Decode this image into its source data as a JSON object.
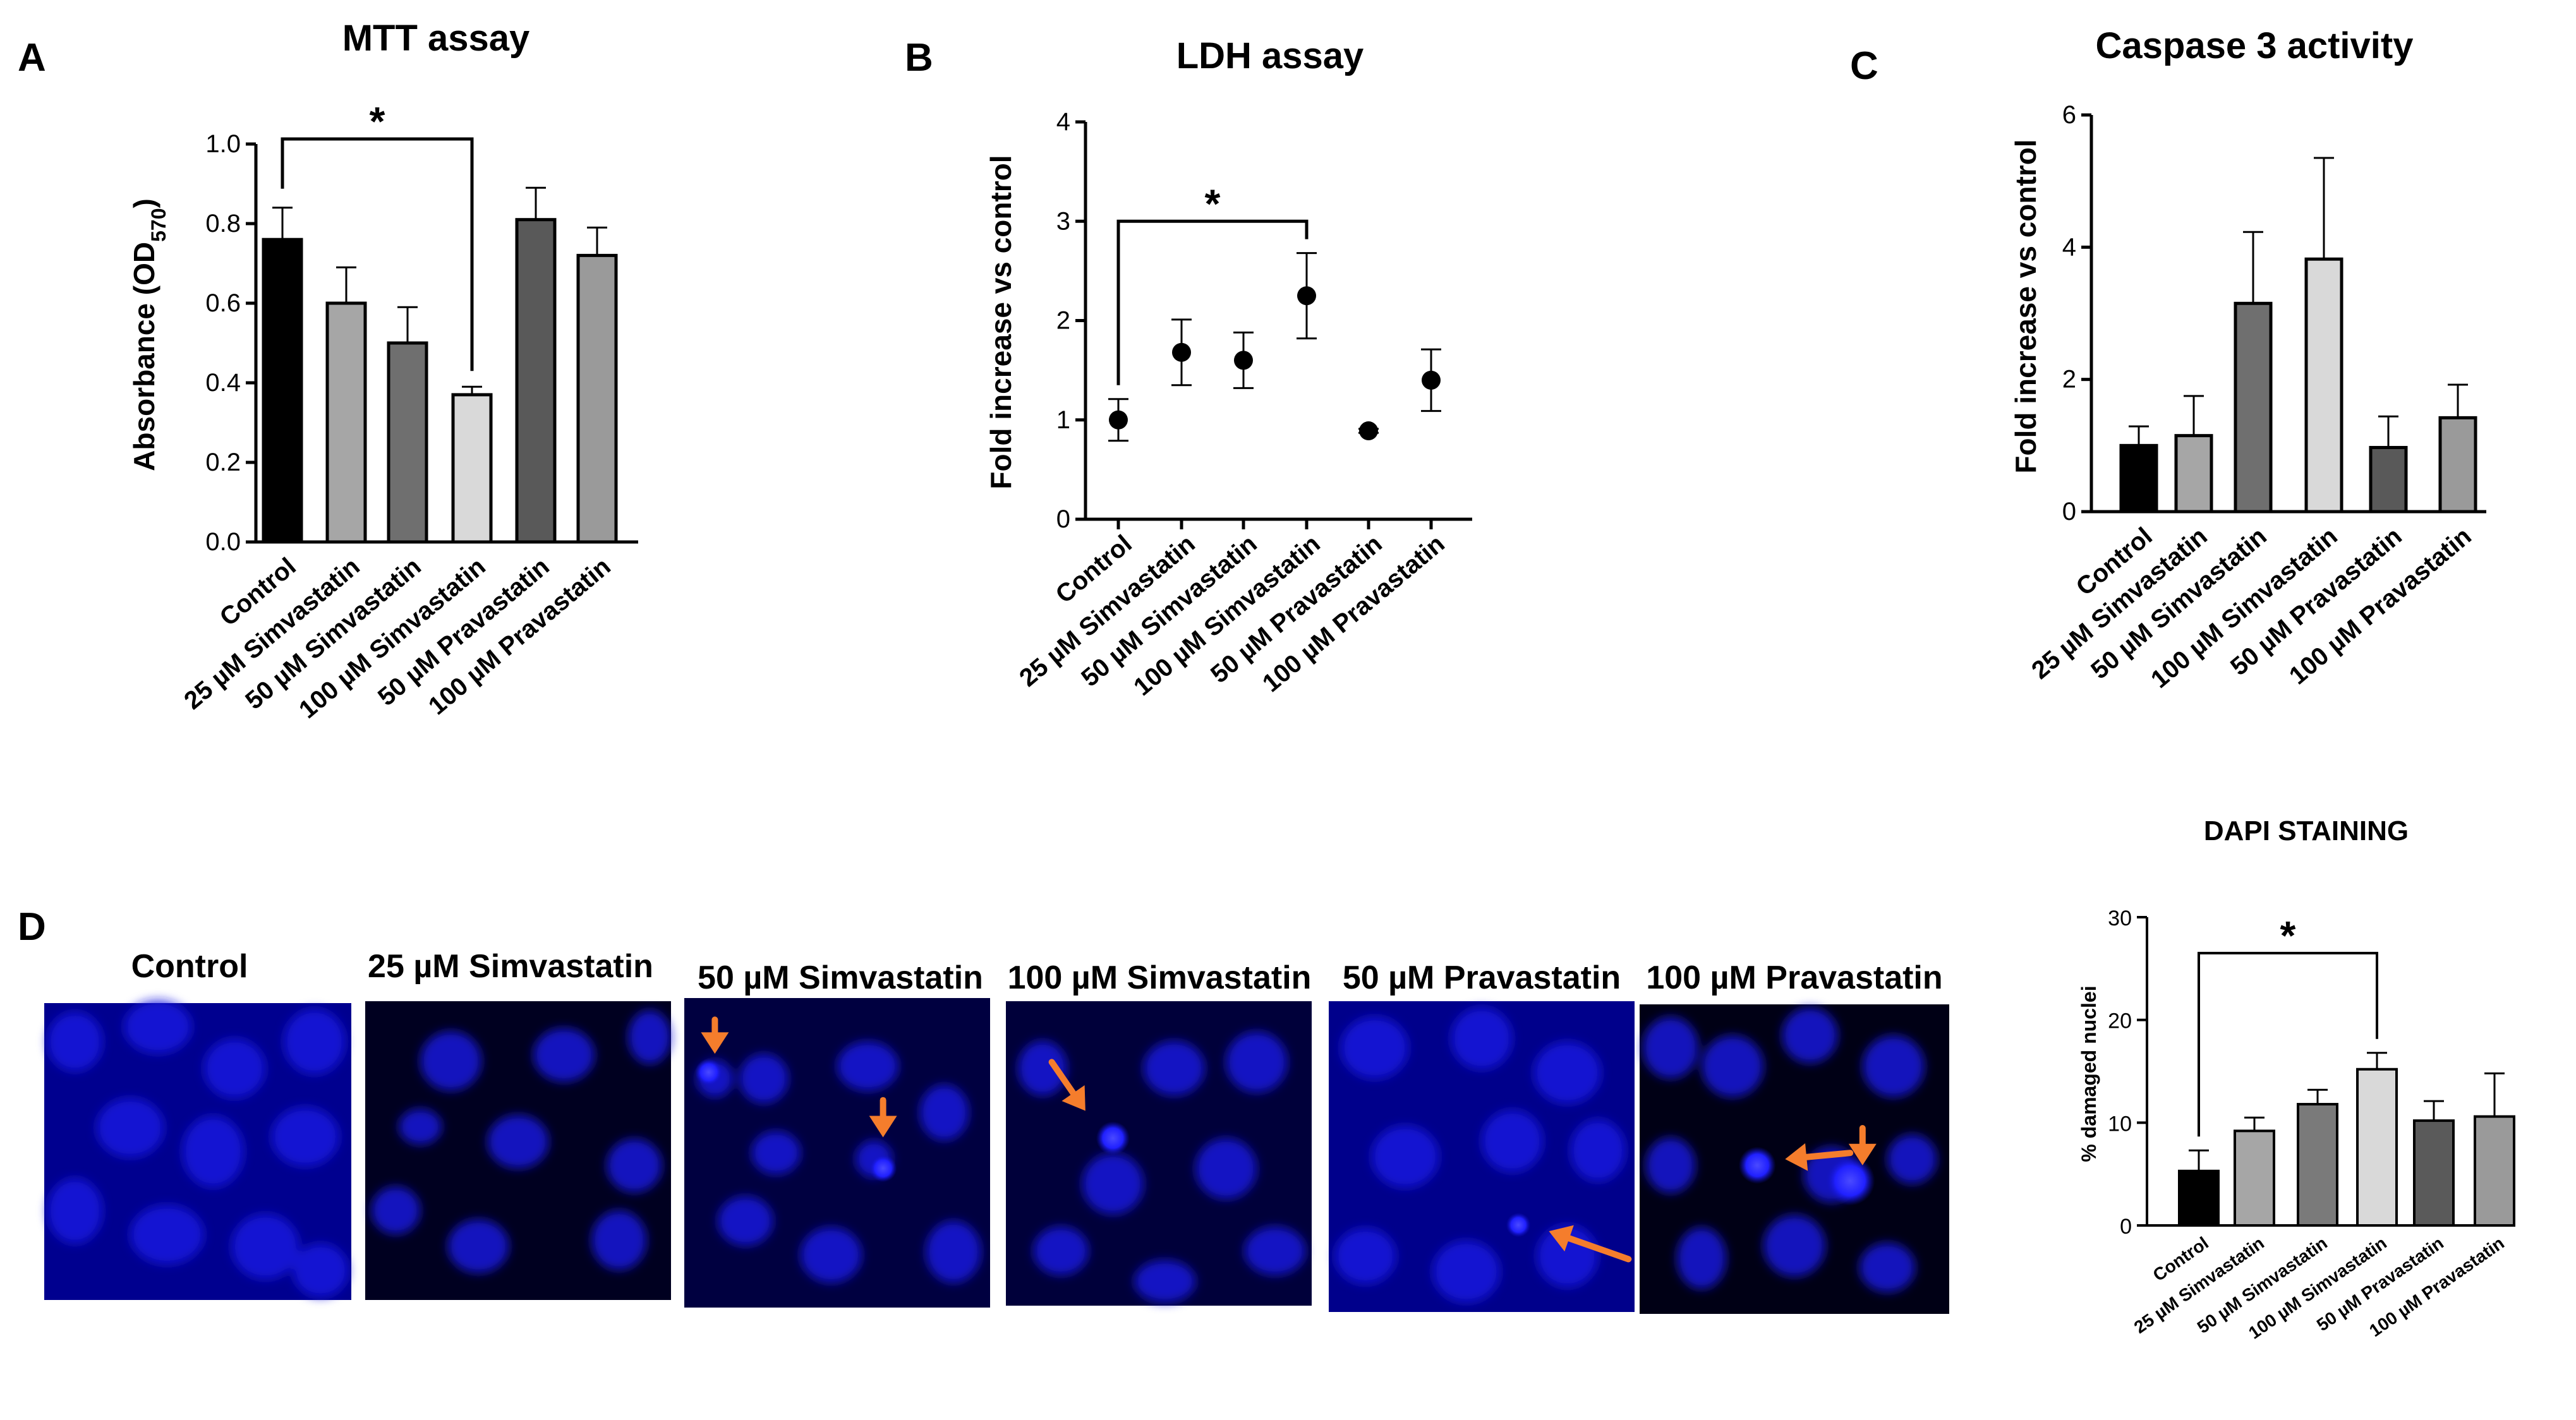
{
  "panels": {
    "a": "A",
    "b": "B",
    "c": "C",
    "d": "D"
  },
  "chart_data": [
    {
      "id": "mtt",
      "type": "bar",
      "title": "MTT assay",
      "ylabel": "Absorbance (OD",
      "ylabel_sub": "570",
      "ylabel_close": ")",
      "ylim": [
        0,
        1.0
      ],
      "yticks": [
        "0.0",
        "0.2",
        "0.4",
        "0.6",
        "0.8",
        "1.0"
      ],
      "categories": [
        "Control",
        "25 µM Simvastatin",
        "50 µM Simvastatin",
        "100 µM Simvastatin",
        "50 µM Pravastatin",
        "100 µM Pravastatin"
      ],
      "values": [
        0.76,
        0.6,
        0.5,
        0.37,
        0.81,
        0.72
      ],
      "errors": [
        0.08,
        0.09,
        0.09,
        0.02,
        0.08,
        0.07
      ],
      "colors": [
        "#000000",
        "#a6a6a6",
        "#6f6f6f",
        "#d9d9d9",
        "#595959",
        "#9a9a9a"
      ],
      "significance": {
        "from": 0,
        "to": 3,
        "label": "*"
      },
      "grid": false
    },
    {
      "id": "ldh",
      "type": "scatter",
      "title": "LDH assay",
      "ylabel": "Fold increase vs control",
      "ylim": [
        0,
        4
      ],
      "yticks": [
        "0",
        "1",
        "2",
        "3",
        "4"
      ],
      "categories": [
        "Control",
        "25 µM Simvastatin",
        "50 µM Simvastatin",
        "100 µM Simvastatin",
        "50 µM Pravastatin",
        "100 µM Pravastatin"
      ],
      "values": [
        1.0,
        1.68,
        1.6,
        2.25,
        0.89,
        1.4
      ],
      "errors": [
        0.21,
        0.33,
        0.28,
        0.43,
        0.02,
        0.31
      ],
      "significance": {
        "from": 0,
        "to": 3,
        "label": "*"
      },
      "grid": false
    },
    {
      "id": "caspase",
      "type": "bar",
      "title": "Caspase 3 activity",
      "ylabel": "Fold increase vs control",
      "ylim": [
        0,
        6
      ],
      "yticks": [
        "0",
        "2",
        "4",
        "6"
      ],
      "categories": [
        "Control",
        "25 µM Simvastatin",
        "50 µM Simvastatin",
        "100 µM Simvastatin",
        "50 µM Pravastatin",
        "100 µM Pravastatin"
      ],
      "values": [
        1.0,
        1.15,
        3.15,
        3.82,
        0.97,
        1.42
      ],
      "errors": [
        0.29,
        0.6,
        1.08,
        1.53,
        0.47,
        0.5
      ],
      "colors": [
        "#000000",
        "#a6a6a6",
        "#6f6f6f",
        "#d9d9d9",
        "#595959",
        "#9a9a9a"
      ],
      "grid": false
    },
    {
      "id": "dapi",
      "type": "bar",
      "title": "DAPI STAINING",
      "ylabel": "% damaged nuclei",
      "ylim": [
        0,
        30
      ],
      "yticks": [
        "0",
        "10",
        "20",
        "30"
      ],
      "categories": [
        "Control",
        "25 µM Simvastatin",
        "50 µM Simvastatin",
        "100 µM Simvastatin",
        "50 µM Pravastatin",
        "100 µM Pravastatin"
      ],
      "values": [
        5.3,
        9.2,
        11.8,
        15.2,
        10.2,
        10.6
      ],
      "errors": [
        2.0,
        1.3,
        1.4,
        1.6,
        1.9,
        4.2
      ],
      "colors": [
        "#000000",
        "#a6a6a6",
        "#7a7a7a",
        "#d9d9d9",
        "#5a5a5a",
        "#9a9a9a"
      ],
      "significance": {
        "from": 0,
        "to": 3,
        "label": "*"
      },
      "grid": false
    }
  ],
  "images": [
    {
      "label": "Control",
      "arrows": []
    },
    {
      "label": "25 µM Simvastatin",
      "arrows": []
    },
    {
      "label": "50 µM Simvastatin",
      "arrows": [
        "down",
        "down"
      ]
    },
    {
      "label": "100 µM Simvastatin",
      "arrows": [
        "down-right"
      ]
    },
    {
      "label": "50 µM Pravastatin",
      "arrows": [
        "left"
      ]
    },
    {
      "label": "100 µM Pravastatin",
      "arrows": [
        "left",
        "down"
      ]
    }
  ],
  "colors": {
    "nucleus": "#1a1aff",
    "background": "#00008b",
    "arrow": "#f57d2c"
  }
}
